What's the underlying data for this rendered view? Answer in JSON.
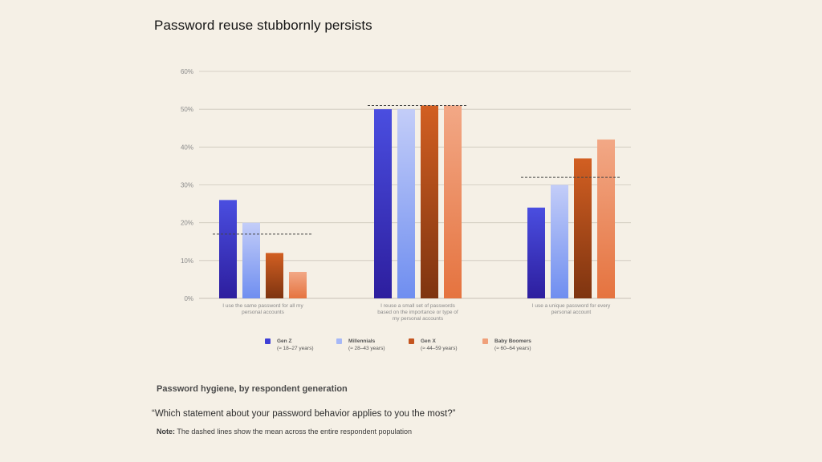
{
  "title": "Password reuse stubbornly persists",
  "subtitle": "Password hygiene, by respondent generation",
  "question": "“Which statement about your password behavior applies to you the most?”",
  "note": {
    "label": "Note:",
    "text": "The dashed lines show the mean across the entire respondent population"
  },
  "legend": [
    {
      "name": "Gen Z",
      "detail": "(≈ 18–27 years)",
      "color": "#3f3fd6"
    },
    {
      "name": "Millennials",
      "detail": "(≈ 28–43 years)",
      "color": "#a6b8f7"
    },
    {
      "name": "Gen X",
      "detail": "(≈ 44–59 years)",
      "color": "#c4551f"
    },
    {
      "name": "Baby Boomers",
      "detail": "(≈ 60–64 years)",
      "color": "#f0a07a"
    }
  ],
  "chart_data": {
    "type": "bar",
    "categories": [
      [
        "I use the same password for all my",
        "personal accounts"
      ],
      [
        "I reuse a small set of passwords",
        "based on the importance or type of",
        "my personal accounts"
      ],
      [
        "I use a unique password for every",
        "personal account"
      ]
    ],
    "series": [
      {
        "name": "Gen Z",
        "values": [
          26,
          50,
          24
        ]
      },
      {
        "name": "Millennials",
        "values": [
          20,
          50,
          30
        ]
      },
      {
        "name": "Gen X",
        "values": [
          12,
          51,
          37
        ]
      },
      {
        "name": "Baby Boomers",
        "values": [
          7,
          51,
          42
        ]
      }
    ],
    "means": [
      17,
      51,
      32
    ],
    "ylim": [
      0,
      60
    ],
    "yticks": [
      "0%",
      "10%",
      "20%",
      "30%",
      "40%",
      "50%",
      "60%"
    ],
    "grid": true,
    "legend_position": "bottom"
  }
}
